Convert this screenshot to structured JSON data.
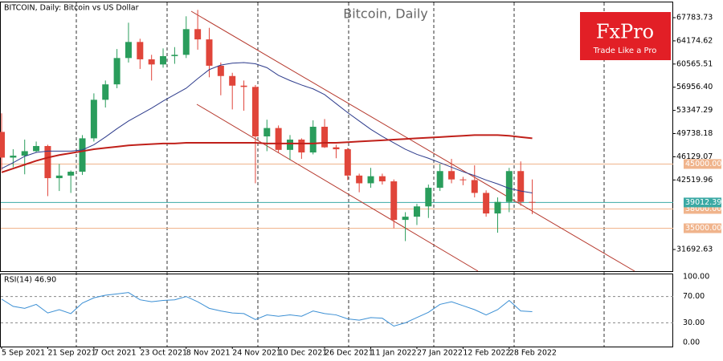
{
  "chart_data": {
    "type": "candlestick",
    "title": "Bitcoin, Daily",
    "symbol_label": "BITCOIN, Daily:  Bitcoin vs US Dollar",
    "logo": {
      "brand": "FxPro",
      "tagline": "Trade Like a Pro",
      "color": "#e21f26"
    },
    "categories": [
      "5 Sep 2021",
      null,
      null,
      null,
      "21 Sep 2021",
      null,
      null,
      null,
      "7 Oct 2021",
      null,
      null,
      null,
      "23 Oct 2021",
      null,
      null,
      null,
      "8 Nov 2021",
      null,
      null,
      null,
      "24 Nov 2021",
      null,
      null,
      null,
      "10 Dec 2021",
      null,
      null,
      null,
      "26 Dec 2021",
      null,
      null,
      null,
      "11 Jan 2022",
      null,
      null,
      null,
      "27 Jan 2022",
      null,
      null,
      null,
      "12 Feb 2022",
      null,
      null,
      null,
      "28 Feb 2022",
      null,
      null
    ],
    "open": [
      50000,
      46000,
      46300,
      47000,
      47800,
      42800,
      43200,
      43800,
      49000,
      55000,
      57400,
      61500,
      64000,
      61300,
      60500,
      61800,
      62000,
      66000,
      64400,
      60300,
      58700,
      57200,
      57000,
      49300,
      50600,
      47200,
      48800,
      46800,
      50800,
      47600,
      47300,
      43200,
      42000,
      43100,
      42300,
      36300,
      36800,
      38400,
      41300,
      43900,
      42600,
      42500,
      40500,
      37300,
      39100,
      43900,
      39100
    ],
    "high": [
      52900,
      47300,
      48800,
      48500,
      48000,
      45000,
      44000,
      49500,
      56000,
      58000,
      62900,
      67000,
      64500,
      62000,
      63000,
      63200,
      68000,
      69000,
      66200,
      60800,
      59200,
      58000,
      57300,
      51900,
      51000,
      49500,
      49000,
      51800,
      52000,
      48000,
      47500,
      43500,
      44400,
      43500,
      42600,
      37500,
      38800,
      41800,
      45000,
      45800,
      43000,
      44800,
      40900,
      39800,
      44400,
      45400,
      42600
    ],
    "low": [
      44000,
      44500,
      43400,
      46800,
      40000,
      40800,
      40500,
      43300,
      48500,
      53800,
      56800,
      60800,
      59800,
      58000,
      60000,
      60600,
      61500,
      62800,
      58500,
      55700,
      53500,
      53300,
      42000,
      47000,
      46800,
      45600,
      45800,
      46500,
      47500,
      45900,
      42500,
      40600,
      41300,
      41800,
      35000,
      33000,
      35500,
      36600,
      40800,
      42000,
      41700,
      39800,
      36800,
      34300,
      37500,
      38500,
      37200
    ],
    "close": [
      46000,
      46300,
      47000,
      47800,
      42800,
      43200,
      43800,
      49000,
      55000,
      57400,
      61500,
      64000,
      61300,
      60500,
      61800,
      62000,
      66000,
      64400,
      60300,
      58700,
      57200,
      57000,
      49300,
      50600,
      47200,
      48800,
      46800,
      50800,
      47600,
      47300,
      43200,
      42000,
      43100,
      42300,
      36300,
      36800,
      38400,
      41300,
      43900,
      42600,
      42500,
      40500,
      37300,
      39100,
      43900,
      39100,
      39000
    ],
    "up_color": "#2a9d5c",
    "down_color": "#e0453a",
    "moving_averages": [
      {
        "color": "#2e3c8c",
        "values": [
          44300,
          45200,
          46200,
          46800,
          47000,
          47000,
          47000,
          47200,
          48000,
          49200,
          50500,
          51700,
          52700,
          53700,
          54800,
          55800,
          56800,
          58300,
          59700,
          60400,
          60700,
          60800,
          60600,
          60000,
          58800,
          58000,
          57300,
          56700,
          55800,
          54400,
          53000,
          51700,
          50400,
          49300,
          48300,
          47300,
          46500,
          45900,
          45200,
          44500,
          43800,
          43200,
          42500,
          41900,
          41200,
          40800,
          40500
        ]
      },
      {
        "color": "#c0201a",
        "values": [
          43700,
          44300,
          44900,
          45500,
          46000,
          46400,
          46700,
          47000,
          47300,
          47500,
          47700,
          47900,
          48000,
          48100,
          48200,
          48200,
          48300,
          48300,
          48300,
          48300,
          48300,
          48300,
          48300,
          48200,
          48200,
          48200,
          48200,
          48200,
          48300,
          48300,
          48400,
          48500,
          48600,
          48700,
          48800,
          48900,
          49000,
          49100,
          49200,
          49300,
          49400,
          49500,
          49500,
          49500,
          49400,
          49200,
          49000
        ]
      }
    ],
    "ylim": [
      28320,
      69910
    ],
    "yticks": [
      67783.73,
      64174.62,
      60565.51,
      {
        "value": 56956.4,
        "label": "56956.40"
      },
      53347.29,
      49738.18,
      46129.07,
      42519.96,
      31692.63
    ],
    "levels": [
      {
        "value": 45000,
        "label": "45000.00",
        "color": "#f0b48c"
      },
      {
        "value": 38000,
        "label": "38000.00",
        "color": "#f0b48c"
      },
      {
        "value": 35000,
        "label": "35000.00",
        "color": "#f0b48c"
      }
    ],
    "current_price": 39012.39,
    "current_color": "#3aa9a4",
    "indicator": {
      "label": "RSI(14) 46.90",
      "color": "#3b8fd4",
      "values": [
        66,
        55,
        52,
        58,
        45,
        50,
        44,
        60,
        68,
        72,
        74,
        76,
        65,
        62,
        64,
        65,
        70,
        62,
        52,
        48,
        45,
        44,
        35,
        42,
        40,
        42,
        40,
        48,
        44,
        42,
        36,
        34,
        38,
        37,
        25,
        30,
        38,
        46,
        58,
        62,
        56,
        50,
        42,
        50,
        64,
        48,
        46.9
      ],
      "ylim": [
        0,
        100
      ],
      "yticks": [
        {
          "value": 100,
          "label": "100.00"
        },
        {
          "value": 70,
          "label": "70.00"
        },
        {
          "value": 30,
          "label": "30.00"
        },
        {
          "value": 0,
          "label": "0.00"
        }
      ]
    }
  }
}
